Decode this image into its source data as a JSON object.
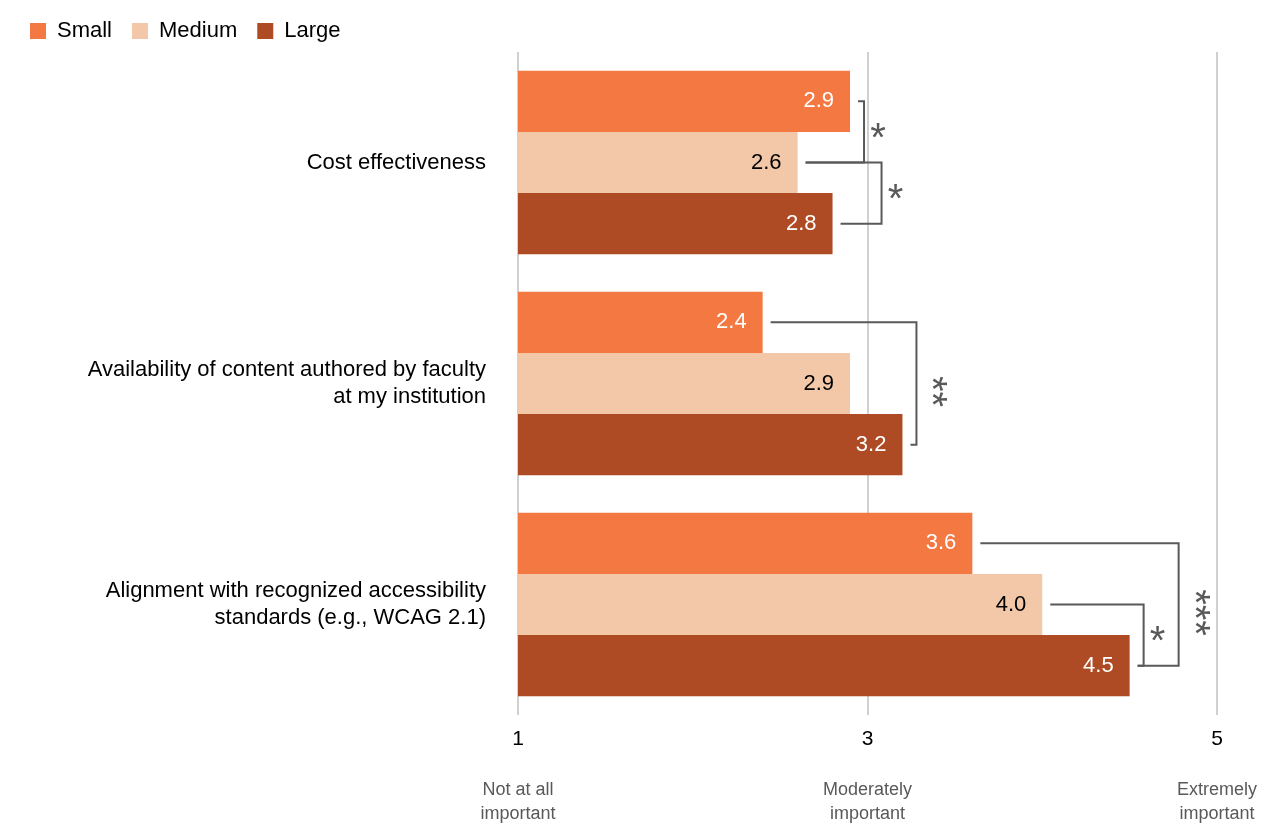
{
  "chart_data": {
    "type": "bar",
    "orientation": "horizontal",
    "categories": [
      "Cost effectiveness",
      "Availability of content authored by faculty at my institution",
      "Alignment with recognized accessibility standards (e.g., WCAG 2.1)"
    ],
    "series": [
      {
        "name": "Small",
        "color": "#f47841",
        "values": [
          2.9,
          2.4,
          3.6
        ],
        "value_labels": [
          "2.9",
          "2.4",
          "3.6"
        ]
      },
      {
        "name": "Medium",
        "color": "#f2c8a8",
        "values": [
          2.6,
          2.9,
          4.0
        ],
        "value_labels": [
          "2.6",
          "2.9",
          "4.0"
        ]
      },
      {
        "name": "Large",
        "color": "#ae4b25",
        "values": [
          2.8,
          3.2,
          4.5
        ],
        "value_labels": [
          "2.8",
          "3.2",
          "4.5"
        ]
      }
    ],
    "xlim": [
      1,
      5
    ],
    "xticks": [
      1,
      3,
      5
    ],
    "grid": "x",
    "legend": "top left",
    "annotations": [
      "Not at all important",
      "Moderately important",
      "Extremely important",
      "*",
      "*",
      "**",
      "*",
      "***"
    ]
  }
}
